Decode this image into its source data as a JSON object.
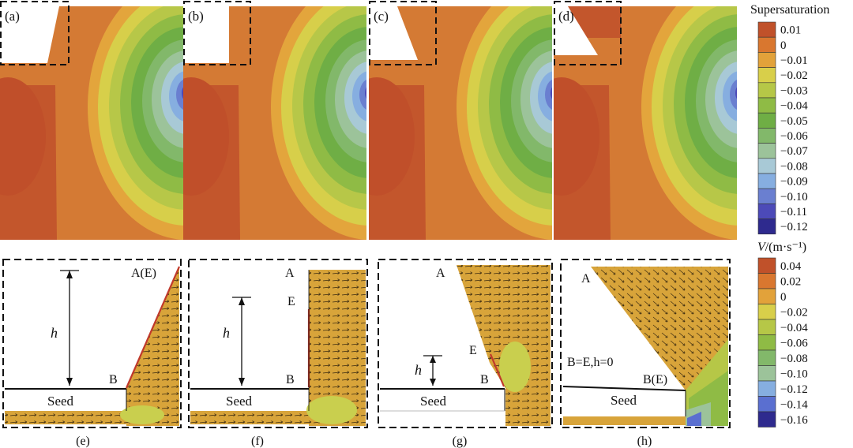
{
  "top_panels": [
    {
      "label": "(a)"
    },
    {
      "label": "(b)"
    },
    {
      "label": "(c)"
    },
    {
      "label": "(d)"
    }
  ],
  "bottom_panels": [
    {
      "caption": "(e)",
      "point_a": "A(E)",
      "point_e": "",
      "point_b": "B",
      "seed": "Seed",
      "h": "h",
      "note": ""
    },
    {
      "caption": "(f)",
      "point_a": "A",
      "point_e": "E",
      "point_b": "B",
      "seed": "Seed",
      "h": "h",
      "note": ""
    },
    {
      "caption": "(g)",
      "point_a": "A",
      "point_e": "E",
      "point_b": "B",
      "seed": "Seed",
      "h": "h",
      "note": ""
    },
    {
      "caption": "(h)",
      "point_a": "A",
      "point_e": "",
      "point_b": "B(E)",
      "seed": "Seed",
      "h": "",
      "note": "B=E,h=0"
    }
  ],
  "legend_supersaturation": {
    "title": "Supersaturation",
    "ticks": [
      "0.01",
      "0",
      "−0.01",
      "−0.02",
      "−0.03",
      "−0.04",
      "−0.05",
      "−0.06",
      "−0.07",
      "−0.08",
      "−0.09",
      "−0.10",
      "−0.11",
      "−0.12"
    ],
    "colors": [
      "#c0512a",
      "#d9772f",
      "#e2a23a",
      "#d8cf4a",
      "#b6c747",
      "#8fbb45",
      "#6fae45",
      "#82b86a",
      "#9cc39a",
      "#a8c9d6",
      "#86aee0",
      "#6a7fd0",
      "#4c4ab8",
      "#2e2a8e"
    ]
  },
  "legend_velocity": {
    "title_var": "V",
    "title_unit": "/(m·s⁻¹)",
    "ticks": [
      "0.04",
      "0.02",
      "0",
      "−0.02",
      "−0.04",
      "−0.06",
      "−0.08",
      "−0.10",
      "−0.12",
      "−0.14",
      "−0.16"
    ],
    "colors": [
      "#c0512a",
      "#d9772f",
      "#e2a23a",
      "#d8cf4a",
      "#b6c747",
      "#8fbb45",
      "#82b86a",
      "#9cc39a",
      "#86aee0",
      "#5a6fd0",
      "#2e2a8e"
    ]
  }
}
